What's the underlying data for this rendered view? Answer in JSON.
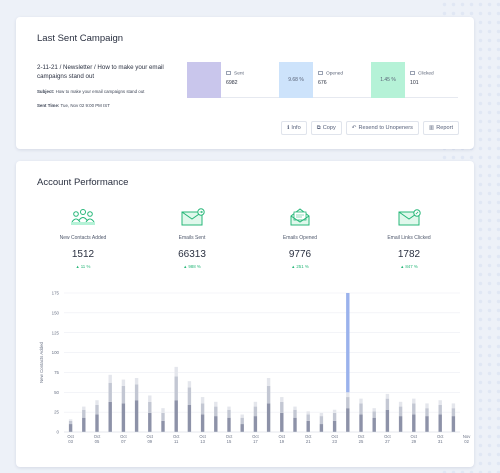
{
  "campaign": {
    "title": "Last Sent Campaign",
    "name": "2-11-21 / Newsletter / How to make your email campaigns stand out",
    "subject_label": "Subject:",
    "subject": "How to make your email campaigns stand out",
    "sent_time_label": "Sent Time:",
    "sent_time": "Tue, Nov 02 9:00 PM IST",
    "stats": [
      {
        "label": "Sent",
        "value": "6982",
        "swatch_text": "",
        "color": "#c9c6ec"
      },
      {
        "label": "Opened",
        "value": "676",
        "swatch_text": "9.68 %",
        "color": "#cde3fb"
      },
      {
        "label": "Clicked",
        "value": "101",
        "swatch_text": "1.45 %",
        "color": "#b5f2d7"
      }
    ],
    "actions": [
      {
        "label": "Info",
        "icon": "info-icon"
      },
      {
        "label": "Copy",
        "icon": "copy-icon"
      },
      {
        "label": "Resend to Unopeners",
        "icon": "resend-icon"
      },
      {
        "label": "Report",
        "icon": "report-icon"
      }
    ]
  },
  "performance": {
    "title": "Account Performance",
    "kpis": [
      {
        "label": "New Contacts Added",
        "value": "1512",
        "change": "11 %",
        "icon": "contacts-icon"
      },
      {
        "label": "Emails Sent",
        "value": "66313",
        "change": "988 %",
        "icon": "email-sent-icon"
      },
      {
        "label": "Emails Opened",
        "value": "9776",
        "change": "251 %",
        "icon": "email-opened-icon"
      },
      {
        "label": "Email Links Clicked",
        "value": "1782",
        "change": "847 %",
        "icon": "email-link-icon"
      }
    ],
    "accent_color": "#27b779"
  },
  "chart_data": {
    "type": "bar",
    "stacked": true,
    "ylabel": "New Contacts Added",
    "ylim": [
      0,
      175
    ],
    "yticks": [
      0,
      25,
      50,
      75,
      100,
      125,
      150,
      175
    ],
    "xtick_labels": [
      [
        "Oct",
        "03"
      ],
      [
        "Oct",
        "05"
      ],
      [
        "Oct",
        "07"
      ],
      [
        "Oct",
        "09"
      ],
      [
        "Oct",
        "11"
      ],
      [
        "Oct",
        "13"
      ],
      [
        "Oct",
        "15"
      ],
      [
        "Oct",
        "17"
      ],
      [
        "Oct",
        "19"
      ],
      [
        "Oct",
        "21"
      ],
      [
        "Oct",
        "23"
      ],
      [
        "Oct",
        "25"
      ],
      [
        "Oct",
        "27"
      ],
      [
        "Oct",
        "29"
      ],
      [
        "Oct",
        "31"
      ],
      [
        "Nov",
        "02"
      ]
    ],
    "series_colors": [
      "#8d92a8",
      "#c3c7d3",
      "#e4e6ec",
      "#9bb2ec"
    ],
    "bars": [
      [
        10,
        4,
        2,
        0
      ],
      [
        18,
        10,
        4,
        0
      ],
      [
        22,
        12,
        6,
        0
      ],
      [
        38,
        24,
        10,
        0
      ],
      [
        36,
        22,
        8,
        0
      ],
      [
        40,
        20,
        8,
        0
      ],
      [
        24,
        14,
        8,
        0
      ],
      [
        14,
        10,
        6,
        0
      ],
      [
        40,
        30,
        12,
        0
      ],
      [
        34,
        22,
        8,
        0
      ],
      [
        22,
        14,
        8,
        0
      ],
      [
        20,
        12,
        6,
        0
      ],
      [
        18,
        10,
        4,
        0
      ],
      [
        10,
        8,
        4,
        0
      ],
      [
        20,
        12,
        6,
        0
      ],
      [
        36,
        22,
        10,
        0
      ],
      [
        24,
        14,
        6,
        0
      ],
      [
        18,
        10,
        4,
        0
      ],
      [
        14,
        8,
        4,
        0
      ],
      [
        10,
        10,
        4,
        0
      ],
      [
        14,
        10,
        4,
        0
      ],
      [
        30,
        14,
        6,
        125
      ],
      [
        22,
        14,
        6,
        0
      ],
      [
        18,
        8,
        4,
        0
      ],
      [
        28,
        14,
        6,
        0
      ],
      [
        20,
        12,
        6,
        0
      ],
      [
        22,
        14,
        6,
        0
      ],
      [
        20,
        10,
        6,
        0
      ],
      [
        22,
        12,
        6,
        0
      ],
      [
        20,
        10,
        6,
        0
      ]
    ]
  }
}
